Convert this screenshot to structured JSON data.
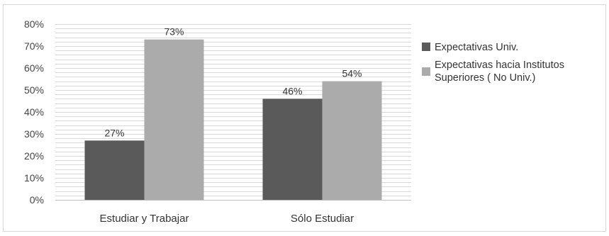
{
  "chart_data": {
    "type": "bar",
    "categories": [
      "Estudiar y Trabajar",
      "Sólo Estudiar"
    ],
    "series": [
      {
        "name": "Expectativas Univ.",
        "values": [
          27,
          46
        ],
        "color": "#5a5a5a"
      },
      {
        "name": "Expectativas hacia Institutos Superiores ( No Univ.)",
        "values": [
          73,
          54
        ],
        "color": "#ababab"
      }
    ],
    "data_labels": [
      [
        "27%",
        "46%"
      ],
      [
        "73%",
        "54%"
      ]
    ],
    "legend_lines": [
      [
        "Expectativas Univ."
      ],
      [
        "Expectativas hacia Institutos",
        "Superiores ( No Univ.)"
      ]
    ],
    "ylim": [
      0,
      80
    ],
    "y_ticks": [
      0,
      10,
      20,
      30,
      40,
      50,
      60,
      70,
      80
    ],
    "y_tick_labels": [
      "0%",
      "10%",
      "20%",
      "30%",
      "40%",
      "50%",
      "60%",
      "70%",
      "80%"
    ],
    "minor_grid_step": 2,
    "grid": true,
    "legend_position": "right",
    "grid_color": "#d9d9d9",
    "frame_color": "#d9d9d9"
  }
}
